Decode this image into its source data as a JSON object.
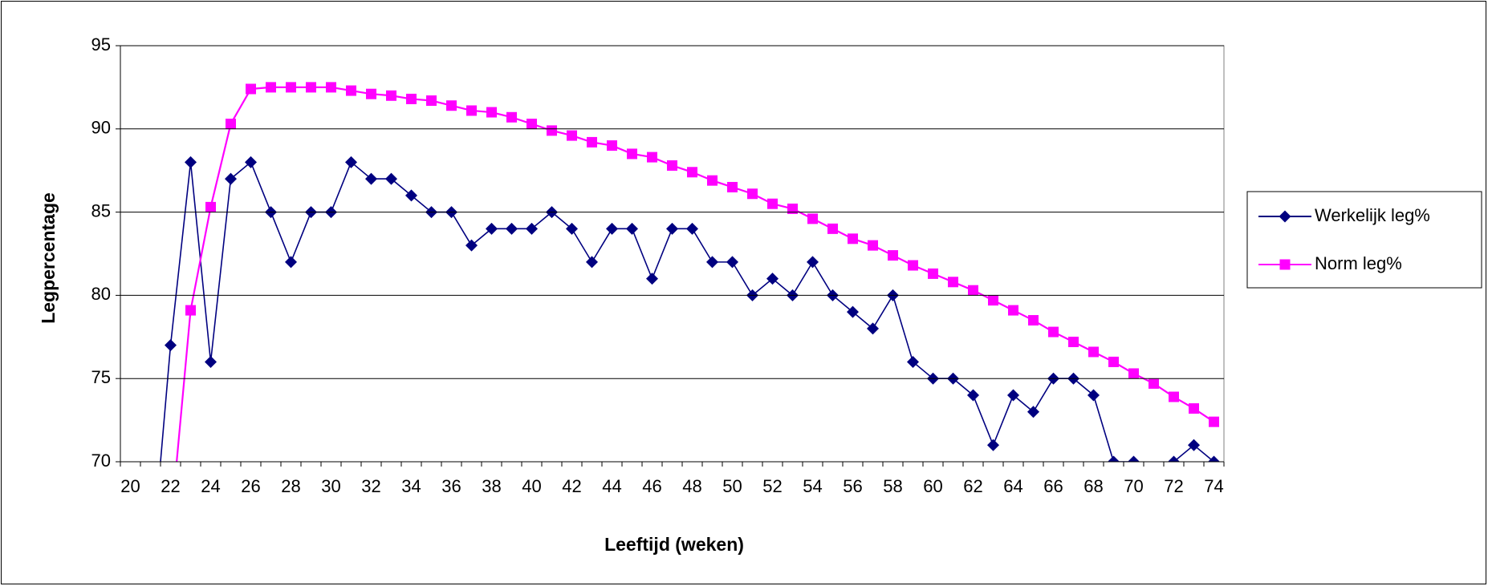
{
  "chart_data": {
    "type": "line",
    "x_label": "Leeftijd (weken)",
    "y_label": "Legpercentage",
    "categories": [
      20,
      null,
      22,
      null,
      24,
      null,
      26,
      null,
      28,
      null,
      30,
      null,
      32,
      null,
      34,
      null,
      36,
      null,
      38,
      null,
      40,
      null,
      42,
      null,
      44,
      null,
      46,
      null,
      48,
      null,
      50,
      null,
      52,
      null,
      54,
      null,
      56,
      null,
      58,
      null,
      60,
      null,
      62,
      null,
      64,
      null,
      66,
      null,
      68,
      null,
      70,
      null,
      72,
      null,
      74
    ],
    "series": [
      {
        "name": "Werkelijk leg%",
        "color": "#000080",
        "marker": "diamond",
        "values": [
          null,
          63,
          77,
          88,
          76,
          87,
          88,
          85,
          82,
          85,
          85,
          88,
          87,
          87,
          86,
          85,
          85,
          83,
          84,
          84,
          84,
          85,
          84,
          82,
          84,
          84,
          81,
          84,
          84,
          82,
          82,
          80,
          81,
          80,
          82,
          80,
          79,
          78,
          80,
          76,
          75,
          75,
          74,
          71,
          74,
          73,
          75,
          75,
          74,
          70,
          70,
          69,
          70,
          71,
          70
        ]
      },
      {
        "name": "Norm leg%",
        "color": "#FF00FF",
        "marker": "square",
        "values": [
          null,
          null,
          66,
          79.1,
          85.3,
          90.3,
          92.4,
          92.5,
          92.5,
          92.5,
          92.5,
          92.3,
          92.1,
          92.0,
          91.8,
          91.7,
          91.4,
          91.1,
          91.0,
          90.7,
          90.3,
          89.9,
          89.6,
          89.2,
          89.0,
          88.5,
          88.3,
          87.8,
          87.4,
          86.9,
          86.5,
          86.1,
          85.5,
          85.2,
          84.6,
          84.0,
          83.4,
          83.0,
          82.4,
          81.8,
          81.3,
          80.8,
          80.3,
          79.7,
          79.1,
          78.5,
          77.8,
          77.2,
          76.6,
          76.0,
          75.3,
          74.7,
          73.9,
          73.2,
          72.4
        ]
      }
    ],
    "ylim": [
      70,
      95
    ],
    "yticks": [
      70,
      75,
      80,
      85,
      90,
      95
    ],
    "grid": true,
    "legend": "right"
  }
}
